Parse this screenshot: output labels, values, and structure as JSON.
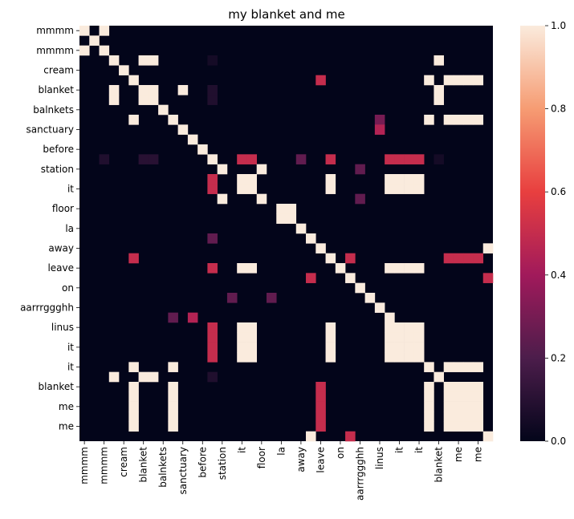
{
  "chart_data": {
    "type": "heatmap",
    "title": "my blanket and me",
    "xlabel": "",
    "ylabel": "",
    "labels": [
      "mmmm",
      "mmmm",
      "cream",
      "blanket",
      "balnkets",
      "sanctuary",
      "before",
      "station",
      "it",
      "floor",
      "la",
      "away",
      "leave",
      "on",
      "aarrrggghh",
      "linus",
      "it",
      "it",
      "blanket",
      "me",
      "me"
    ],
    "n": 42,
    "tick_step": 2,
    "colorbar": {
      "range": [
        0.0,
        1.0
      ],
      "ticks": [
        0.0,
        0.2,
        0.4,
        0.6,
        0.8,
        1.0
      ],
      "tick_labels": [
        "0.0",
        "0.2",
        "0.4",
        "0.6",
        "0.8",
        "1.0"
      ]
    },
    "colorscale": [
      "#03051a",
      "#4c1d4b",
      "#a11a5b",
      "#e83f3f",
      "#f69c73",
      "#faebdd"
    ],
    "cells": [
      [
        0,
        0,
        1
      ],
      [
        0,
        2,
        1
      ],
      [
        1,
        1,
        1
      ],
      [
        2,
        0,
        1
      ],
      [
        2,
        2,
        1
      ],
      [
        3,
        3,
        1
      ],
      [
        3,
        6,
        1
      ],
      [
        3,
        7,
        1
      ],
      [
        3,
        13,
        0.05
      ],
      [
        3,
        36,
        1
      ],
      [
        4,
        4,
        1
      ],
      [
        5,
        5,
        1
      ],
      [
        5,
        24,
        0.5
      ],
      [
        5,
        35,
        1
      ],
      [
        5,
        37,
        1
      ],
      [
        5,
        38,
        1
      ],
      [
        5,
        39,
        1
      ],
      [
        5,
        40,
        1
      ],
      [
        6,
        3,
        1
      ],
      [
        6,
        6,
        1
      ],
      [
        6,
        7,
        1
      ],
      [
        6,
        10,
        1
      ],
      [
        6,
        13,
        0.08
      ],
      [
        6,
        36,
        1
      ],
      [
        7,
        3,
        1
      ],
      [
        7,
        6,
        1
      ],
      [
        7,
        7,
        1
      ],
      [
        7,
        13,
        0.08
      ],
      [
        7,
        36,
        1
      ],
      [
        8,
        8,
        1
      ],
      [
        9,
        5,
        1
      ],
      [
        9,
        9,
        1
      ],
      [
        9,
        30,
        0.3
      ],
      [
        9,
        35,
        1
      ],
      [
        9,
        37,
        1
      ],
      [
        9,
        38,
        1
      ],
      [
        9,
        39,
        1
      ],
      [
        9,
        40,
        1
      ],
      [
        10,
        10,
        1
      ],
      [
        10,
        30,
        0.45
      ],
      [
        11,
        11,
        1
      ],
      [
        12,
        12,
        1
      ],
      [
        13,
        2,
        0.08
      ],
      [
        13,
        6,
        0.1
      ],
      [
        13,
        7,
        0.1
      ],
      [
        13,
        13,
        1
      ],
      [
        13,
        16,
        0.5
      ],
      [
        13,
        17,
        0.5
      ],
      [
        13,
        22,
        0.25
      ],
      [
        13,
        25,
        0.5
      ],
      [
        13,
        31,
        0.5
      ],
      [
        13,
        32,
        0.5
      ],
      [
        13,
        33,
        0.5
      ],
      [
        13,
        34,
        0.5
      ],
      [
        13,
        36,
        0.05
      ],
      [
        14,
        14,
        1
      ],
      [
        14,
        18,
        1
      ],
      [
        14,
        28,
        0.25
      ],
      [
        15,
        13,
        0.5
      ],
      [
        15,
        16,
        1
      ],
      [
        15,
        17,
        1
      ],
      [
        15,
        25,
        1
      ],
      [
        15,
        31,
        1
      ],
      [
        15,
        32,
        1
      ],
      [
        15,
        33,
        1
      ],
      [
        15,
        34,
        1
      ],
      [
        16,
        13,
        0.5
      ],
      [
        16,
        16,
        1
      ],
      [
        16,
        17,
        1
      ],
      [
        16,
        25,
        1
      ],
      [
        16,
        31,
        1
      ],
      [
        16,
        32,
        1
      ],
      [
        16,
        33,
        1
      ],
      [
        16,
        34,
        1
      ],
      [
        17,
        14,
        1
      ],
      [
        17,
        18,
        1
      ],
      [
        17,
        28,
        0.25
      ],
      [
        18,
        20,
        1
      ],
      [
        18,
        21,
        1
      ],
      [
        19,
        20,
        1
      ],
      [
        19,
        21,
        1
      ],
      [
        20,
        22,
        1
      ],
      [
        21,
        13,
        0.25
      ],
      [
        21,
        23,
        1
      ],
      [
        22,
        24,
        1
      ],
      [
        22,
        41,
        1
      ],
      [
        23,
        5,
        0.5
      ],
      [
        23,
        25,
        1
      ],
      [
        23,
        27,
        0.5
      ],
      [
        23,
        37,
        0.5
      ],
      [
        23,
        38,
        0.5
      ],
      [
        23,
        39,
        0.5
      ],
      [
        23,
        40,
        0.5
      ],
      [
        24,
        13,
        0.5
      ],
      [
        24,
        16,
        1
      ],
      [
        24,
        17,
        1
      ],
      [
        24,
        26,
        1
      ],
      [
        24,
        31,
        1
      ],
      [
        24,
        32,
        1
      ],
      [
        24,
        33,
        1
      ],
      [
        24,
        34,
        1
      ],
      [
        25,
        23,
        0.5
      ],
      [
        25,
        27,
        1
      ],
      [
        25,
        41,
        0.5
      ],
      [
        26,
        28,
        1
      ],
      [
        27,
        15,
        0.25
      ],
      [
        27,
        19,
        0.25
      ],
      [
        27,
        29,
        1
      ],
      [
        28,
        30,
        1
      ],
      [
        29,
        9,
        0.25
      ],
      [
        29,
        11,
        0.45
      ],
      [
        29,
        31,
        1
      ],
      [
        30,
        13,
        0.5
      ],
      [
        30,
        16,
        1
      ],
      [
        30,
        17,
        1
      ],
      [
        30,
        25,
        1
      ],
      [
        30,
        31,
        1
      ],
      [
        30,
        32,
        1
      ],
      [
        30,
        33,
        1
      ],
      [
        30,
        34,
        1
      ],
      [
        31,
        13,
        0.5
      ],
      [
        31,
        16,
        1
      ],
      [
        31,
        17,
        1
      ],
      [
        31,
        25,
        1
      ],
      [
        31,
        31,
        1
      ],
      [
        31,
        32,
        1
      ],
      [
        31,
        33,
        1
      ],
      [
        31,
        34,
        1
      ],
      [
        32,
        13,
        0.5
      ],
      [
        32,
        16,
        1
      ],
      [
        32,
        17,
        1
      ],
      [
        32,
        25,
        1
      ],
      [
        32,
        31,
        1
      ],
      [
        32,
        32,
        1
      ],
      [
        32,
        33,
        1
      ],
      [
        32,
        34,
        1
      ],
      [
        33,
        13,
        0.5
      ],
      [
        33,
        16,
        1
      ],
      [
        33,
        17,
        1
      ],
      [
        33,
        25,
        1
      ],
      [
        33,
        31,
        1
      ],
      [
        33,
        32,
        1
      ],
      [
        33,
        33,
        1
      ],
      [
        33,
        34,
        1
      ],
      [
        34,
        5,
        1
      ],
      [
        34,
        9,
        1
      ],
      [
        34,
        35,
        1
      ],
      [
        34,
        37,
        1
      ],
      [
        34,
        38,
        1
      ],
      [
        34,
        39,
        1
      ],
      [
        34,
        40,
        1
      ],
      [
        35,
        3,
        1
      ],
      [
        35,
        6,
        1
      ],
      [
        35,
        7,
        1
      ],
      [
        35,
        13,
        0.08
      ],
      [
        35,
        36,
        1
      ],
      [
        36,
        5,
        1
      ],
      [
        36,
        9,
        1
      ],
      [
        36,
        24,
        0.5
      ],
      [
        36,
        35,
        1
      ],
      [
        36,
        37,
        1
      ],
      [
        36,
        38,
        1
      ],
      [
        36,
        39,
        1
      ],
      [
        36,
        40,
        1
      ],
      [
        37,
        5,
        1
      ],
      [
        37,
        9,
        1
      ],
      [
        37,
        24,
        0.5
      ],
      [
        37,
        35,
        1
      ],
      [
        37,
        37,
        1
      ],
      [
        37,
        38,
        1
      ],
      [
        37,
        39,
        1
      ],
      [
        37,
        40,
        1
      ],
      [
        38,
        5,
        1
      ],
      [
        38,
        9,
        1
      ],
      [
        38,
        24,
        0.5
      ],
      [
        38,
        35,
        1
      ],
      [
        38,
        37,
        1
      ],
      [
        38,
        38,
        1
      ],
      [
        38,
        39,
        1
      ],
      [
        38,
        40,
        1
      ],
      [
        39,
        5,
        1
      ],
      [
        39,
        9,
        1
      ],
      [
        39,
        24,
        0.5
      ],
      [
        39,
        35,
        1
      ],
      [
        39,
        37,
        1
      ],
      [
        39,
        38,
        1
      ],
      [
        39,
        39,
        1
      ],
      [
        39,
        40,
        1
      ],
      [
        40,
        5,
        1
      ],
      [
        40,
        9,
        1
      ],
      [
        40,
        24,
        0.5
      ],
      [
        40,
        35,
        1
      ],
      [
        40,
        37,
        1
      ],
      [
        40,
        38,
        1
      ],
      [
        40,
        39,
        1
      ],
      [
        40,
        40,
        1
      ],
      [
        41,
        23,
        1
      ],
      [
        41,
        27,
        0.5
      ],
      [
        41,
        41,
        1
      ]
    ]
  }
}
